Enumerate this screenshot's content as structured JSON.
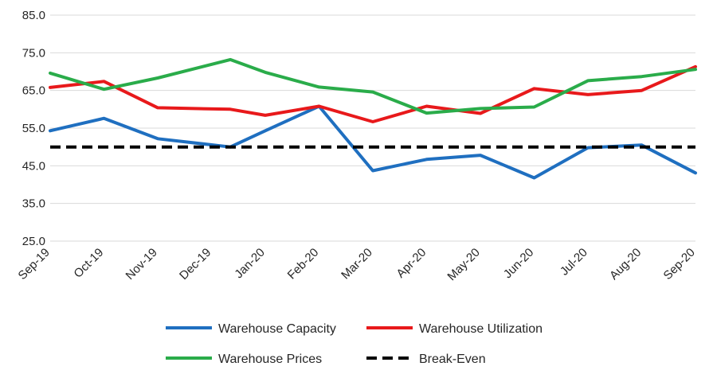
{
  "chart_data": {
    "type": "line",
    "categories": [
      "Sep-19",
      "Oct-19",
      "Nov-19",
      "Dec-19",
      "Jan-20",
      "Feb-20",
      "Mar-20",
      "Apr-20",
      "May-20",
      "Jun-20",
      "Jul-20",
      "Aug-20",
      "Sep-20"
    ],
    "y_ticks": [
      "25.0",
      "35.0",
      "45.0",
      "55.0",
      "65.0",
      "75.0",
      "85.0"
    ],
    "ylim": [
      25,
      85
    ],
    "grid": "horizontal",
    "legend_position": "bottom",
    "series": [
      {
        "name": "Warehouse Capacity",
        "color": "#1f6fc0",
        "dash": "solid",
        "points": [
          [
            0,
            54.3
          ],
          [
            1,
            57.6
          ],
          [
            2,
            52.2
          ],
          [
            3.35,
            50.0
          ],
          [
            4,
            54.3
          ],
          [
            5,
            60.8
          ],
          [
            6,
            43.7
          ],
          [
            7,
            46.7
          ],
          [
            8,
            47.8
          ],
          [
            9,
            41.8
          ],
          [
            10,
            49.8
          ],
          [
            11,
            50.5
          ],
          [
            12,
            43.1
          ]
        ]
      },
      {
        "name": "Warehouse Utilization",
        "color": "#e8191b",
        "dash": "solid",
        "points": [
          [
            0,
            65.8
          ],
          [
            1,
            67.4
          ],
          [
            2,
            60.4
          ],
          [
            3.35,
            60.0
          ],
          [
            4,
            58.4
          ],
          [
            5,
            60.8
          ],
          [
            6,
            56.7
          ],
          [
            7,
            60.8
          ],
          [
            8,
            58.9
          ],
          [
            9,
            65.5
          ],
          [
            10,
            63.9
          ],
          [
            11,
            65.0
          ],
          [
            12,
            71.3
          ]
        ]
      },
      {
        "name": "Warehouse Prices",
        "color": "#2aac4a",
        "dash": "solid",
        "points": [
          [
            0,
            69.6
          ],
          [
            1,
            65.3
          ],
          [
            2,
            68.3
          ],
          [
            3.35,
            73.2
          ],
          [
            4,
            69.8
          ],
          [
            5,
            65.9
          ],
          [
            6,
            64.6
          ],
          [
            7,
            59.0
          ],
          [
            8,
            60.2
          ],
          [
            9,
            60.6
          ],
          [
            10,
            67.6
          ],
          [
            11,
            68.7
          ],
          [
            12,
            70.6
          ]
        ]
      },
      {
        "name": "Break-Even",
        "color": "#000000",
        "dash": "dashed",
        "points": [
          [
            0,
            50.0
          ],
          [
            12,
            50.0
          ]
        ]
      }
    ]
  }
}
